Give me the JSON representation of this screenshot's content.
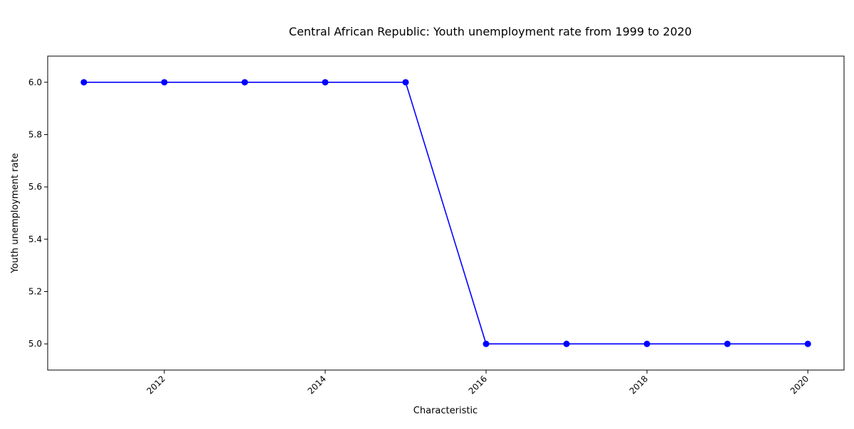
{
  "chart_data": {
    "type": "line",
    "title": "Central African Republic: Youth unemployment rate from 1999 to 2020",
    "xlabel": "Characteristic",
    "ylabel": "Youth unemployment rate",
    "x": [
      2011,
      2012,
      2013,
      2014,
      2015,
      2016,
      2017,
      2018,
      2019,
      2020
    ],
    "series": [
      {
        "values": [
          6.0,
          6.0,
          6.0,
          6.0,
          6.0,
          5.0,
          5.0,
          5.0,
          5.0,
          5.0
        ]
      }
    ],
    "xlim": [
      2010.55,
      2020.45
    ],
    "ylim": [
      4.9,
      6.1
    ],
    "xticks": [
      2012,
      2014,
      2016,
      2018,
      2020
    ],
    "xtick_labels": [
      "2012",
      "2014",
      "2016",
      "2018",
      "2020"
    ],
    "yticks": [
      5.0,
      5.2,
      5.4,
      5.6,
      5.8,
      6.0
    ],
    "ytick_labels": [
      "5.0",
      "5.2",
      "5.4",
      "5.6",
      "5.8",
      "6.0"
    ],
    "grid": false,
    "line_color": "#0000ff",
    "marker": "circle"
  }
}
